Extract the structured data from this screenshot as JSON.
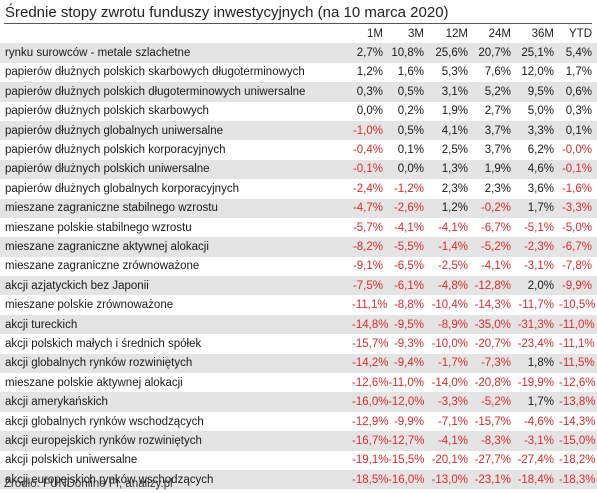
{
  "chart_data": {
    "type": "table",
    "title": "Średnie stopy zwrotu funduszy inwestycyjnych (na 10 marca 2020)",
    "columns": [
      "1M",
      "3M",
      "12M",
      "24M",
      "36M",
      "YTD"
    ],
    "rows": [
      {
        "name": "rynku surowców - metale szlachetne",
        "values": [
          "2,7%",
          "10,8%",
          "25,6%",
          "20,7%",
          "25,1%",
          "5,4%"
        ]
      },
      {
        "name": "papierów dłużnych polskich skarbowych długoterminowych",
        "values": [
          "1,2%",
          "1,6%",
          "5,3%",
          "7,6%",
          "12,0%",
          "1,7%"
        ]
      },
      {
        "name": "papierów dłużnych polskich długoterminowych uniwersalne",
        "values": [
          "0,3%",
          "0,5%",
          "3,1%",
          "5,2%",
          "9,5%",
          "0,6%"
        ]
      },
      {
        "name": "papierów dłużnych polskich skarbowych",
        "values": [
          "0,0%",
          "0,2%",
          "1,9%",
          "2,7%",
          "5,0%",
          "0,3%"
        ]
      },
      {
        "name": "papierów dłużnych globalnych uniwersalne",
        "values": [
          "-1,0%",
          "0,5%",
          "4,1%",
          "3,7%",
          "3,3%",
          "0,1%"
        ]
      },
      {
        "name": "papierów dłużnych polskich korporacyjnych",
        "values": [
          "-0,4%",
          "0,1%",
          "2,5%",
          "3,7%",
          "6,2%",
          "-0,0%"
        ]
      },
      {
        "name": "papierów dłużnych polskich uniwersalne",
        "values": [
          "-0,1%",
          "0,0%",
          "1,3%",
          "1,9%",
          "4,6%",
          "-0,1%"
        ]
      },
      {
        "name": "papierów dłużnych globalnych korporacyjnych",
        "values": [
          "-2,4%",
          "-1,2%",
          "2,3%",
          "2,3%",
          "3,6%",
          "-1,6%"
        ]
      },
      {
        "name": "mieszane zagraniczne stabilnego wzrostu",
        "values": [
          "-4,7%",
          "-2,6%",
          "1,2%",
          "-0,2%",
          "1,7%",
          "-3,3%"
        ]
      },
      {
        "name": "mieszane polskie stabilnego wzrostu",
        "values": [
          "-5,7%",
          "-4,1%",
          "-4,1%",
          "-6,7%",
          "-5,1%",
          "-5,0%"
        ]
      },
      {
        "name": "mieszane zagraniczne aktywnej alokacji",
        "values": [
          "-8,2%",
          "-5,5%",
          "-1,4%",
          "-5,2%",
          "-2,3%",
          "-6,7%"
        ]
      },
      {
        "name": "mieszane zagraniczne zrównoważone",
        "values": [
          "-9,1%",
          "-6,5%",
          "-2,5%",
          "-4,1%",
          "-3,1%",
          "-7,8%"
        ]
      },
      {
        "name": "akcji azjatyckich bez Japonii",
        "values": [
          "-7,5%",
          "-6,1%",
          "-4,8%",
          "-12,8%",
          "2,0%",
          "-9,9%"
        ]
      },
      {
        "name": "mieszane polskie zrównoważone",
        "values": [
          "-11,1%",
          "-8,8%",
          "-10,4%",
          "-14,3%",
          "-11,7%",
          "-10,5%"
        ]
      },
      {
        "name": "akcji tureckich",
        "values": [
          "-14,8%",
          "-9,5%",
          "-8,9%",
          "-35,0%",
          "-31,3%",
          "-11,0%"
        ]
      },
      {
        "name": "akcji polskich małych i średnich spółek",
        "values": [
          "-15,7%",
          "-9,3%",
          "-10,0%",
          "-20,7%",
          "-23,4%",
          "-11,1%"
        ]
      },
      {
        "name": "akcji globalnych rynków rozwiniętych",
        "values": [
          "-14,2%",
          "-9,4%",
          "-1,7%",
          "-7,3%",
          "1,8%",
          "-11,5%"
        ]
      },
      {
        "name": "mieszane polskie aktywnej alokacji",
        "values": [
          "-12,6%",
          "-11,0%",
          "-14,0%",
          "-20,8%",
          "-19,9%",
          "-12,6%"
        ]
      },
      {
        "name": "akcji amerykańskich",
        "values": [
          "-16,0%",
          "-12,0%",
          "-3,3%",
          "-5,2%",
          "1,7%",
          "-13,8%"
        ]
      },
      {
        "name": "akcji globalnych rynków wschodzących",
        "values": [
          "-12,9%",
          "-9,9%",
          "-7,1%",
          "-15,7%",
          "-4,6%",
          "-14,3%"
        ]
      },
      {
        "name": "akcji europejskich rynków rozwiniętych",
        "values": [
          "-16,7%",
          "-12,7%",
          "-4,1%",
          "-8,3%",
          "-3,1%",
          "-15,0%"
        ]
      },
      {
        "name": "akcji polskich uniwersalne",
        "values": [
          "-19,1%",
          "-15,5%",
          "-20,1%",
          "-27,7%",
          "-27,4%",
          "-18,2%"
        ]
      },
      {
        "name": "akcji europejskich rynków wschodzących",
        "values": [
          "-18,5%",
          "-16,0%",
          "-13,0%",
          "-23,1%",
          "-18,4%",
          "-18,3%"
        ]
      }
    ],
    "source": "Źródło: FUNDonline FI, analizy.pl",
    "colors": {
      "negative": "#e02b2b",
      "positive": "#1a1a1a",
      "stripe": "#e4e4e4"
    }
  }
}
